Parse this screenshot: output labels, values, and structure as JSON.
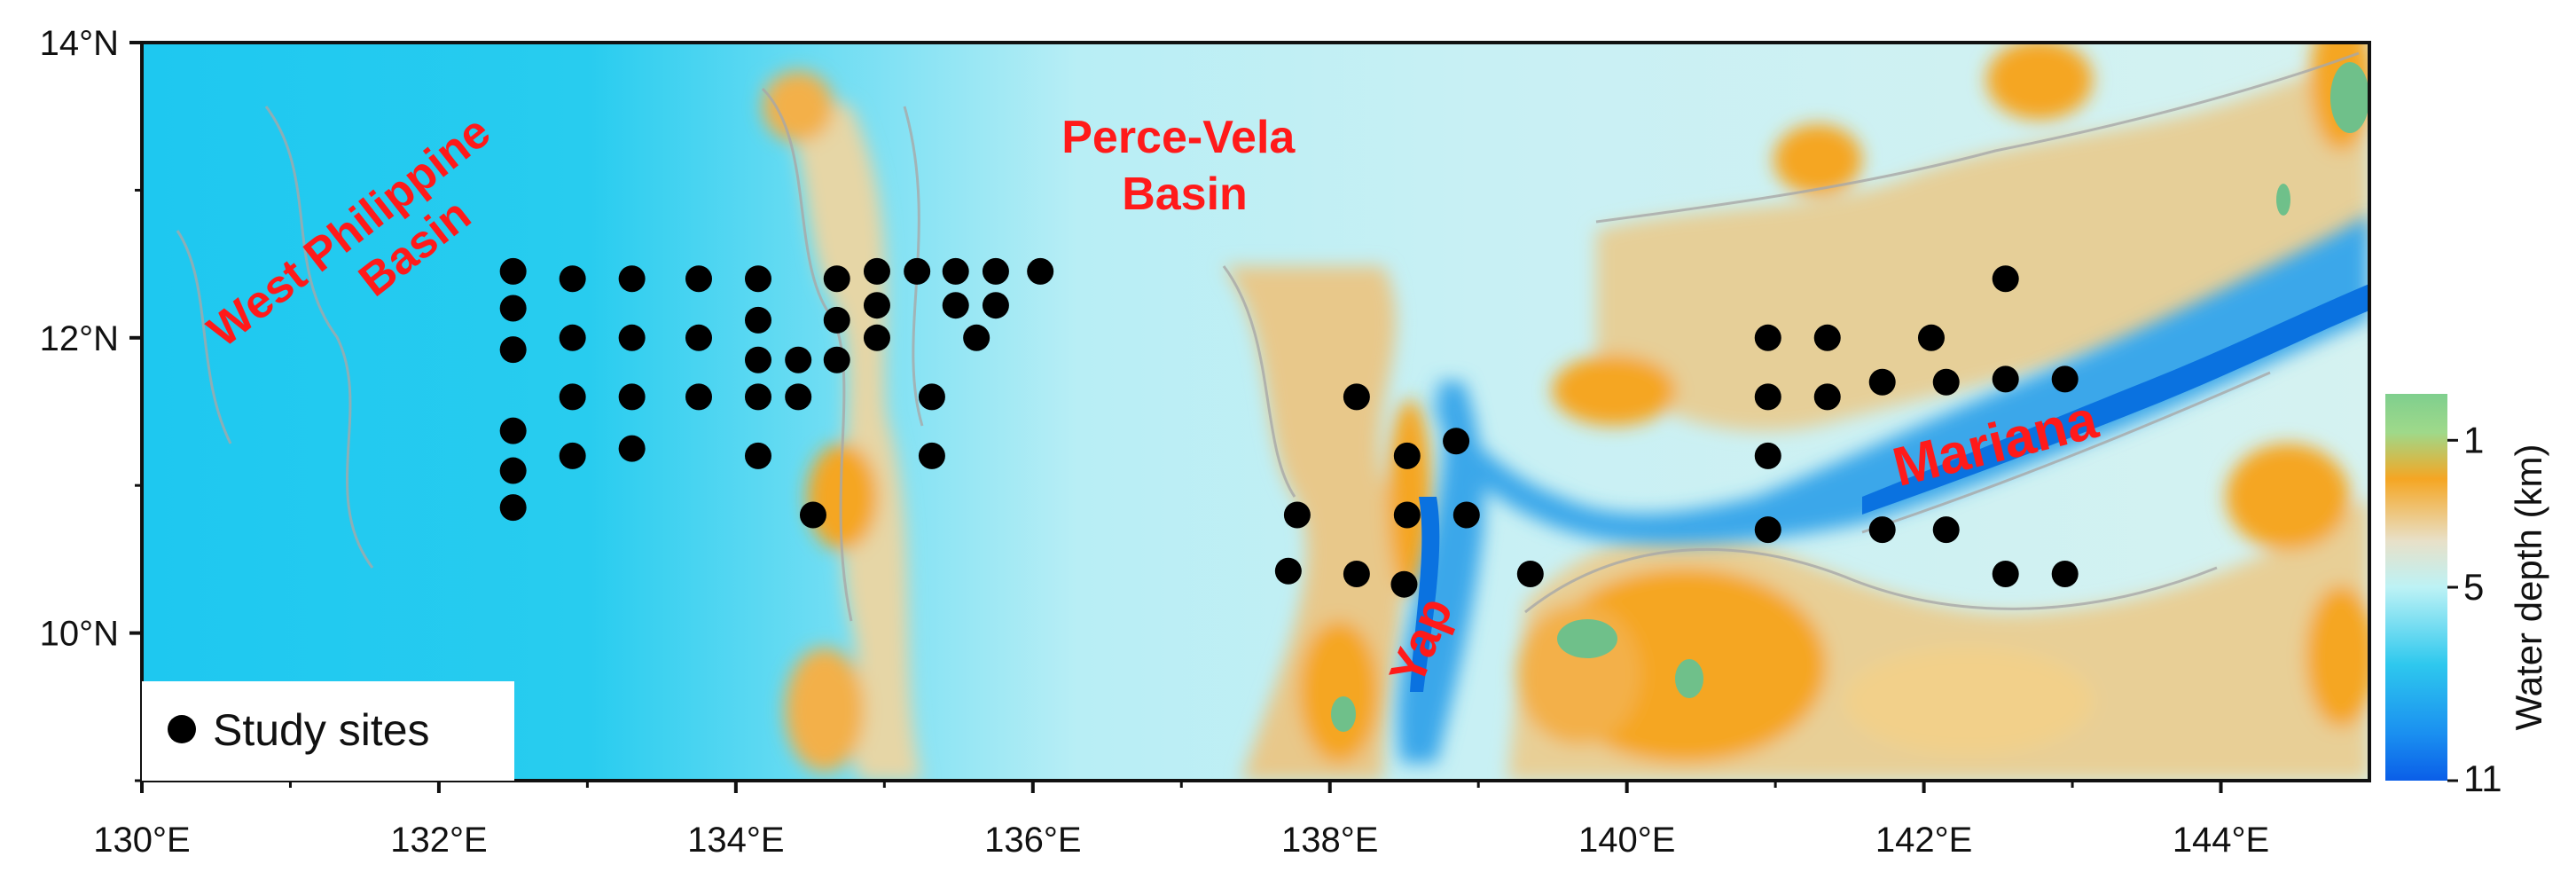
{
  "map": {
    "lon_range": [
      130,
      145
    ],
    "lat_range": [
      9,
      14
    ],
    "x_tick_labels": [
      {
        "lon": 130,
        "text": "130°E"
      },
      {
        "lon": 132,
        "text": "132°E"
      },
      {
        "lon": 134,
        "text": "134°E"
      },
      {
        "lon": 136,
        "text": "136°E"
      },
      {
        "lon": 138,
        "text": "138°E"
      },
      {
        "lon": 140,
        "text": "140°E"
      },
      {
        "lon": 142,
        "text": "142°E"
      },
      {
        "lon": 144,
        "text": "144°E"
      }
    ],
    "y_tick_labels": [
      {
        "lat": 14,
        "text": "14°N"
      },
      {
        "lat": 12,
        "text": "12°N"
      },
      {
        "lat": 10,
        "text": "10°N"
      }
    ],
    "region_labels": [
      {
        "id": "west-philippine-basin",
        "lines": [
          "West Philippine",
          "Basin"
        ]
      },
      {
        "id": "perce-vela-basin",
        "lines": [
          "Perce-Vela",
          "Basin"
        ]
      },
      {
        "id": "yap",
        "lines": [
          "Yap"
        ]
      },
      {
        "id": "mariana",
        "lines": [
          "Mariana"
        ]
      }
    ],
    "legend": {
      "marker": "black-circle",
      "label": "Study sites"
    },
    "colorbar": {
      "title": "Water depth (km)",
      "tick_labels": [
        {
          "depth": 1,
          "text": "1"
        },
        {
          "depth": 5,
          "text": "5"
        },
        {
          "depth": 11,
          "text": "11"
        }
      ],
      "colors": [
        "#7fcf8e",
        "#f5a623",
        "#e8e0c8",
        "#bdf2f5",
        "#2ec8ee",
        "#0a5ee8"
      ]
    },
    "colors": {
      "deep_ocean": "#1ec8f0",
      "mid_ocean": "#a8eef6",
      "shallow": "#e8d8a8",
      "ridge_orange": "#f5a623",
      "trench_blue": "#0a72e0",
      "summit_green": "#6fc08a",
      "contour_gray": "#a8a8a8",
      "site_marker": "#000000",
      "label_red": "#ff1a1a"
    },
    "study_sites": [
      [
        132.5,
        12.45
      ],
      [
        132.5,
        12.2
      ],
      [
        132.5,
        11.92
      ],
      [
        132.5,
        11.37
      ],
      [
        132.5,
        11.1
      ],
      [
        132.5,
        10.85
      ],
      [
        132.9,
        12.4
      ],
      [
        132.9,
        12.0
      ],
      [
        132.9,
        11.6
      ],
      [
        132.9,
        11.2
      ],
      [
        133.3,
        12.4
      ],
      [
        133.3,
        12.0
      ],
      [
        133.3,
        11.6
      ],
      [
        133.3,
        11.25
      ],
      [
        133.75,
        12.4
      ],
      [
        133.75,
        12.0
      ],
      [
        133.75,
        11.6
      ],
      [
        134.15,
        12.4
      ],
      [
        134.15,
        12.12
      ],
      [
        134.15,
        11.85
      ],
      [
        134.15,
        11.6
      ],
      [
        134.15,
        11.2
      ],
      [
        134.42,
        11.85
      ],
      [
        134.42,
        11.6
      ],
      [
        134.52,
        10.8
      ],
      [
        134.68,
        12.4
      ],
      [
        134.68,
        12.12
      ],
      [
        134.68,
        11.85
      ],
      [
        134.95,
        12.45
      ],
      [
        134.95,
        12.22
      ],
      [
        134.95,
        12.0
      ],
      [
        135.22,
        12.45
      ],
      [
        135.48,
        12.45
      ],
      [
        135.48,
        12.22
      ],
      [
        135.75,
        12.45
      ],
      [
        135.75,
        12.22
      ],
      [
        135.62,
        12.0
      ],
      [
        136.05,
        12.45
      ],
      [
        135.32,
        11.6
      ],
      [
        135.32,
        11.2
      ],
      [
        138.18,
        11.6
      ],
      [
        137.78,
        10.8
      ],
      [
        137.72,
        10.42
      ],
      [
        138.18,
        10.4
      ],
      [
        138.52,
        11.2
      ],
      [
        138.52,
        10.8
      ],
      [
        138.5,
        10.33
      ],
      [
        138.85,
        11.3
      ],
      [
        138.92,
        10.8
      ],
      [
        139.35,
        10.4
      ],
      [
        140.95,
        12.0
      ],
      [
        140.95,
        11.6
      ],
      [
        140.95,
        11.2
      ],
      [
        140.95,
        10.7
      ],
      [
        141.35,
        12.0
      ],
      [
        141.35,
        11.6
      ],
      [
        141.72,
        11.7
      ],
      [
        141.72,
        10.7
      ],
      [
        142.05,
        12.0
      ],
      [
        142.15,
        11.7
      ],
      [
        142.15,
        10.7
      ],
      [
        142.55,
        12.4
      ],
      [
        142.55,
        11.72
      ],
      [
        142.55,
        10.4
      ],
      [
        142.95,
        11.72
      ],
      [
        142.95,
        10.4
      ]
    ]
  }
}
